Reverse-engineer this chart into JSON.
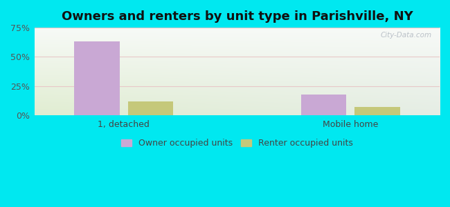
{
  "title": "Owners and renters by unit type in Parishville, NY",
  "categories": [
    "1, detached",
    "Mobile home"
  ],
  "owner_values": [
    63,
    18
  ],
  "renter_values": [
    12,
    7
  ],
  "owner_color": "#c9a8d4",
  "renter_color": "#c5c87a",
  "bar_width": 0.28,
  "ylim": [
    0,
    75
  ],
  "yticks": [
    0,
    25,
    50,
    75
  ],
  "ytick_labels": [
    "0%",
    "25%",
    "50%",
    "75%"
  ],
  "background_outer": "#00e8f0",
  "title_fontsize": 13,
  "legend_fontsize": 9,
  "axis_fontsize": 9,
  "watermark": "City-Data.com",
  "group_positions": [
    0.55,
    1.95
  ],
  "xlim": [
    0.0,
    2.5
  ]
}
